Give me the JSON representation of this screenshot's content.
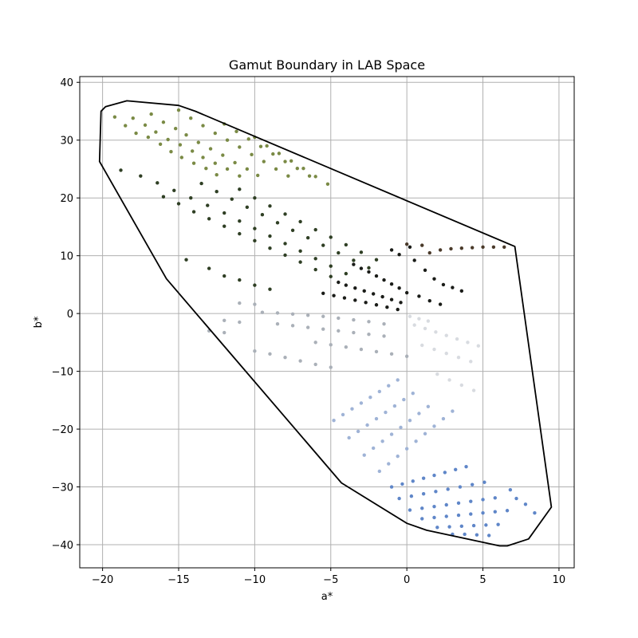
{
  "chart_data": {
    "type": "scatter",
    "title": "Gamut Boundary in LAB Space",
    "xlabel": "a*",
    "ylabel": "b*",
    "xlim": [
      -21.5,
      11
    ],
    "ylim": [
      -44,
      41
    ],
    "grid": true,
    "xticks": [
      -20,
      -15,
      -10,
      -5,
      0,
      5,
      10
    ],
    "yticks": [
      -40,
      -30,
      -20,
      -10,
      0,
      10,
      20,
      30,
      40
    ],
    "xtick_labels": [
      "−20",
      "−15",
      "−10",
      "−5",
      "0",
      "5",
      "10"
    ],
    "ytick_labels": [
      "−40",
      "−30",
      "−20",
      "−10",
      "0",
      "10",
      "20",
      "30",
      "40"
    ],
    "boundary": {
      "color": "#000000",
      "points": [
        [
          -20.1,
          35.0
        ],
        [
          -19.8,
          35.8
        ],
        [
          -18.4,
          36.8
        ],
        [
          -15.0,
          36.0
        ],
        [
          -13.9,
          35.0
        ],
        [
          7.1,
          11.6
        ],
        [
          9.5,
          -33.5
        ],
        [
          8.0,
          -39.0
        ],
        [
          6.6,
          -40.2
        ],
        [
          6.1,
          -40.2
        ],
        [
          1.3,
          -37.5
        ],
        [
          0.0,
          -36.3
        ],
        [
          -4.3,
          -29.3
        ],
        [
          -15.8,
          6.0
        ],
        [
          -20.2,
          26.3
        ]
      ]
    },
    "series_colors": {
      "olive": "#7a8a45",
      "dark_green": "#2f3f24",
      "near_black": "#1a1c18",
      "gray": "#aab0b8",
      "light_gray": "#d8dbe0",
      "light_blue": "#9fb3d6",
      "blue": "#5f86c8",
      "brown": "#4a3a2a"
    },
    "series": [
      {
        "color_key": "olive",
        "points": [
          [
            -19.2,
            34.0
          ],
          [
            -18.5,
            32.5
          ],
          [
            -17.8,
            31.2
          ],
          [
            -17.0,
            30.5
          ],
          [
            -16.2,
            29.3
          ],
          [
            -15.5,
            28.0
          ],
          [
            -14.8,
            27.0
          ],
          [
            -14.0,
            26.0
          ],
          [
            -13.2,
            25.1
          ],
          [
            -12.5,
            24.0
          ],
          [
            -18.0,
            33.8
          ],
          [
            -17.2,
            32.6
          ],
          [
            -16.5,
            31.4
          ],
          [
            -15.7,
            30.1
          ],
          [
            -14.9,
            29.2
          ],
          [
            -14.1,
            28.1
          ],
          [
            -13.4,
            27.0
          ],
          [
            -12.6,
            26.0
          ],
          [
            -11.8,
            25.0
          ],
          [
            -11.0,
            23.8
          ],
          [
            -16.8,
            34.5
          ],
          [
            -16.0,
            33.1
          ],
          [
            -15.2,
            32.0
          ],
          [
            -14.5,
            30.9
          ],
          [
            -13.7,
            29.6
          ],
          [
            -12.9,
            28.5
          ],
          [
            -12.1,
            27.4
          ],
          [
            -11.3,
            26.1
          ],
          [
            -10.5,
            25.0
          ],
          [
            -9.8,
            23.9
          ],
          [
            -15.0,
            35.2
          ],
          [
            -14.2,
            33.8
          ],
          [
            -13.4,
            32.5
          ],
          [
            -12.6,
            31.2
          ],
          [
            -11.8,
            30.0
          ],
          [
            -11.0,
            28.8
          ],
          [
            -10.2,
            27.5
          ],
          [
            -9.4,
            26.3
          ],
          [
            -8.6,
            25.0
          ],
          [
            -7.8,
            23.8
          ],
          [
            -12.0,
            32.8
          ],
          [
            -11.2,
            31.5
          ],
          [
            -10.4,
            30.2
          ],
          [
            -9.6,
            28.9
          ],
          [
            -8.8,
            27.6
          ],
          [
            -8.0,
            26.3
          ],
          [
            -7.2,
            25.1
          ],
          [
            -6.4,
            23.8
          ],
          [
            -10.0,
            30.5
          ],
          [
            -9.2,
            29.0
          ],
          [
            -8.4,
            27.7
          ],
          [
            -7.6,
            26.4
          ],
          [
            -6.8,
            25.1
          ],
          [
            -6.0,
            23.7
          ],
          [
            -5.2,
            22.4
          ]
        ]
      },
      {
        "color_key": "dark_green",
        "points": [
          [
            -18.8,
            24.8
          ],
          [
            -17.5,
            23.8
          ],
          [
            -16.4,
            22.6
          ],
          [
            -15.3,
            21.3
          ],
          [
            -14.2,
            20.0
          ],
          [
            -13.1,
            18.7
          ],
          [
            -12.0,
            17.4
          ],
          [
            -11.0,
            16.0
          ],
          [
            -10.0,
            14.7
          ],
          [
            -9.0,
            13.4
          ],
          [
            -8.0,
            12.1
          ],
          [
            -7.0,
            10.8
          ],
          [
            -6.0,
            9.5
          ],
          [
            -5.0,
            8.2
          ],
          [
            -4.0,
            6.9
          ],
          [
            -16.0,
            20.2
          ],
          [
            -15.0,
            19.0
          ],
          [
            -14.0,
            17.6
          ],
          [
            -13.0,
            16.4
          ],
          [
            -12.0,
            15.1
          ],
          [
            -11.0,
            13.8
          ],
          [
            -10.0,
            12.6
          ],
          [
            -9.0,
            11.3
          ],
          [
            -8.0,
            10.1
          ],
          [
            -7.0,
            8.9
          ],
          [
            -6.0,
            7.6
          ],
          [
            -5.0,
            6.4
          ],
          [
            -13.5,
            22.5
          ],
          [
            -12.5,
            21.1
          ],
          [
            -11.5,
            19.8
          ],
          [
            -10.5,
            18.4
          ],
          [
            -9.5,
            17.1
          ],
          [
            -8.5,
            15.7
          ],
          [
            -7.5,
            14.4
          ],
          [
            -6.5,
            13.1
          ],
          [
            -5.5,
            11.8
          ],
          [
            -4.5,
            10.5
          ],
          [
            -3.5,
            9.2
          ],
          [
            -2.5,
            7.9
          ],
          [
            -11.0,
            21.5
          ],
          [
            -10.0,
            20.0
          ],
          [
            -9.0,
            18.6
          ],
          [
            -8.0,
            17.2
          ],
          [
            -7.0,
            15.9
          ],
          [
            -6.0,
            14.5
          ],
          [
            -5.0,
            13.2
          ],
          [
            -4.0,
            11.9
          ],
          [
            -3.0,
            10.6
          ],
          [
            -2.0,
            9.3
          ],
          [
            -14.5,
            9.3
          ],
          [
            -13.0,
            7.8
          ],
          [
            -12.0,
            6.5
          ],
          [
            -11.0,
            5.8
          ],
          [
            -10.0,
            4.9
          ],
          [
            -9.0,
            4.2
          ]
        ]
      },
      {
        "color_key": "near_black",
        "points": [
          [
            -3.5,
            8.5
          ],
          [
            -3.0,
            7.8
          ],
          [
            -2.5,
            7.2
          ],
          [
            -2.0,
            6.5
          ],
          [
            -1.5,
            5.8
          ],
          [
            -1.0,
            5.1
          ],
          [
            -0.5,
            4.4
          ],
          [
            0.0,
            3.6
          ],
          [
            -4.5,
            5.4
          ],
          [
            -4.0,
            4.9
          ],
          [
            -3.4,
            4.4
          ],
          [
            -2.8,
            3.9
          ],
          [
            -2.2,
            3.4
          ],
          [
            -1.6,
            2.9
          ],
          [
            -1.0,
            2.4
          ],
          [
            -0.4,
            1.9
          ],
          [
            -5.5,
            3.5
          ],
          [
            -4.8,
            3.1
          ],
          [
            -4.1,
            2.7
          ],
          [
            -3.4,
            2.3
          ],
          [
            -2.7,
            1.9
          ],
          [
            -2.0,
            1.5
          ],
          [
            -1.3,
            1.1
          ],
          [
            -0.6,
            0.7
          ],
          [
            -1.0,
            11.0
          ],
          [
            -0.5,
            10.2
          ],
          [
            0.2,
            11.5
          ],
          [
            0.5,
            9.2
          ],
          [
            1.2,
            7.5
          ],
          [
            1.8,
            6.0
          ],
          [
            2.4,
            5.0
          ],
          [
            3.0,
            4.5
          ],
          [
            3.6,
            3.9
          ],
          [
            0.8,
            3.0
          ],
          [
            1.5,
            2.2
          ],
          [
            2.2,
            1.6
          ]
        ]
      },
      {
        "color_key": "brown",
        "points": [
          [
            1.5,
            10.5
          ],
          [
            2.2,
            11.0
          ],
          [
            2.9,
            11.2
          ],
          [
            3.6,
            11.3
          ],
          [
            4.3,
            11.4
          ],
          [
            5.0,
            11.5
          ],
          [
            5.7,
            11.5
          ],
          [
            6.4,
            11.5
          ],
          [
            1.0,
            11.8
          ],
          [
            0.0,
            12.0
          ]
        ]
      },
      {
        "color_key": "gray",
        "points": [
          [
            -9.5,
            0.2
          ],
          [
            -8.5,
            0.1
          ],
          [
            -7.5,
            -0.1
          ],
          [
            -6.5,
            -0.3
          ],
          [
            -5.5,
            -0.5
          ],
          [
            -4.5,
            -0.8
          ],
          [
            -3.5,
            -1.1
          ],
          [
            -2.5,
            -1.4
          ],
          [
            -1.5,
            -1.8
          ],
          [
            -8.5,
            -1.8
          ],
          [
            -7.5,
            -2.1
          ],
          [
            -6.5,
            -2.4
          ],
          [
            -5.5,
            -2.7
          ],
          [
            -4.5,
            -3.0
          ],
          [
            -3.5,
            -3.3
          ],
          [
            -2.5,
            -3.6
          ],
          [
            -1.5,
            -3.9
          ],
          [
            -6.0,
            -5.0
          ],
          [
            -5.0,
            -5.4
          ],
          [
            -4.0,
            -5.8
          ],
          [
            -3.0,
            -6.2
          ],
          [
            -2.0,
            -6.6
          ],
          [
            -1.0,
            -7.0
          ],
          [
            0.0,
            -7.4
          ],
          [
            -11.0,
            1.8
          ],
          [
            -10.0,
            1.6
          ],
          [
            -12.0,
            -1.2
          ],
          [
            -11.0,
            -1.5
          ],
          [
            -13.0,
            -3.0
          ],
          [
            -12.0,
            -3.3
          ],
          [
            -10.0,
            -6.5
          ],
          [
            -9.0,
            -7.0
          ],
          [
            -8.0,
            -7.6
          ],
          [
            -7.0,
            -8.2
          ],
          [
            -6.0,
            -8.8
          ],
          [
            -5.0,
            -9.3
          ]
        ]
      },
      {
        "color_key": "light_gray",
        "points": [
          [
            0.5,
            -2.0
          ],
          [
            1.2,
            -2.6
          ],
          [
            1.9,
            -3.2
          ],
          [
            2.6,
            -3.8
          ],
          [
            3.3,
            -4.4
          ],
          [
            4.0,
            -5.0
          ],
          [
            4.7,
            -5.6
          ],
          [
            1.0,
            -5.5
          ],
          [
            1.8,
            -6.2
          ],
          [
            2.6,
            -6.9
          ],
          [
            3.4,
            -7.6
          ],
          [
            4.2,
            -8.3
          ],
          [
            2.0,
            -10.5
          ],
          [
            2.8,
            -11.5
          ],
          [
            3.6,
            -12.4
          ],
          [
            4.4,
            -13.3
          ],
          [
            0.2,
            -0.5
          ],
          [
            0.8,
            -0.9
          ],
          [
            1.4,
            -1.3
          ]
        ]
      },
      {
        "color_key": "light_blue",
        "points": [
          [
            -4.8,
            -18.5
          ],
          [
            -4.2,
            -17.5
          ],
          [
            -3.6,
            -16.5
          ],
          [
            -3.0,
            -15.5
          ],
          [
            -2.4,
            -14.5
          ],
          [
            -1.8,
            -13.5
          ],
          [
            -1.2,
            -12.5
          ],
          [
            -0.6,
            -11.5
          ],
          [
            -3.8,
            -21.5
          ],
          [
            -3.2,
            -20.4
          ],
          [
            -2.6,
            -19.3
          ],
          [
            -2.0,
            -18.2
          ],
          [
            -1.4,
            -17.1
          ],
          [
            -0.8,
            -16.0
          ],
          [
            -0.2,
            -14.9
          ],
          [
            0.4,
            -13.8
          ],
          [
            -2.8,
            -24.5
          ],
          [
            -2.2,
            -23.3
          ],
          [
            -1.6,
            -22.1
          ],
          [
            -1.0,
            -20.9
          ],
          [
            -0.4,
            -19.7
          ],
          [
            0.2,
            -18.5
          ],
          [
            0.8,
            -17.3
          ],
          [
            1.4,
            -16.1
          ],
          [
            -1.8,
            -27.3
          ],
          [
            -1.2,
            -26.0
          ],
          [
            -0.6,
            -24.7
          ],
          [
            0.0,
            -23.4
          ],
          [
            0.6,
            -22.1
          ],
          [
            1.2,
            -20.8
          ],
          [
            1.8,
            -19.5
          ],
          [
            2.4,
            -18.2
          ],
          [
            3.0,
            -16.9
          ]
        ]
      },
      {
        "color_key": "blue",
        "points": [
          [
            -1.0,
            -30.0
          ],
          [
            -0.3,
            -29.5
          ],
          [
            0.4,
            -29.0
          ],
          [
            1.1,
            -28.5
          ],
          [
            1.8,
            -28.0
          ],
          [
            2.5,
            -27.5
          ],
          [
            3.2,
            -27.0
          ],
          [
            3.9,
            -26.5
          ],
          [
            -0.5,
            -32.0
          ],
          [
            0.3,
            -31.6
          ],
          [
            1.1,
            -31.2
          ],
          [
            1.9,
            -30.8
          ],
          [
            2.7,
            -30.4
          ],
          [
            3.5,
            -30.0
          ],
          [
            4.3,
            -29.6
          ],
          [
            5.1,
            -29.2
          ],
          [
            0.2,
            -34.0
          ],
          [
            1.0,
            -33.7
          ],
          [
            1.8,
            -33.4
          ],
          [
            2.6,
            -33.1
          ],
          [
            3.4,
            -32.8
          ],
          [
            4.2,
            -32.5
          ],
          [
            5.0,
            -32.2
          ],
          [
            5.8,
            -31.9
          ],
          [
            1.0,
            -35.5
          ],
          [
            1.8,
            -35.3
          ],
          [
            2.6,
            -35.1
          ],
          [
            3.4,
            -34.9
          ],
          [
            4.2,
            -34.7
          ],
          [
            5.0,
            -34.5
          ],
          [
            5.8,
            -34.3
          ],
          [
            6.6,
            -34.1
          ],
          [
            2.0,
            -37.0
          ],
          [
            2.8,
            -36.9
          ],
          [
            3.6,
            -36.8
          ],
          [
            4.4,
            -36.7
          ],
          [
            5.2,
            -36.6
          ],
          [
            6.0,
            -36.5
          ],
          [
            3.0,
            -38.2
          ],
          [
            3.8,
            -38.2
          ],
          [
            4.6,
            -38.3
          ],
          [
            5.4,
            -38.4
          ],
          [
            7.2,
            -32.0
          ],
          [
            7.8,
            -33.0
          ],
          [
            8.4,
            -34.5
          ],
          [
            6.8,
            -30.5
          ]
        ]
      }
    ]
  }
}
